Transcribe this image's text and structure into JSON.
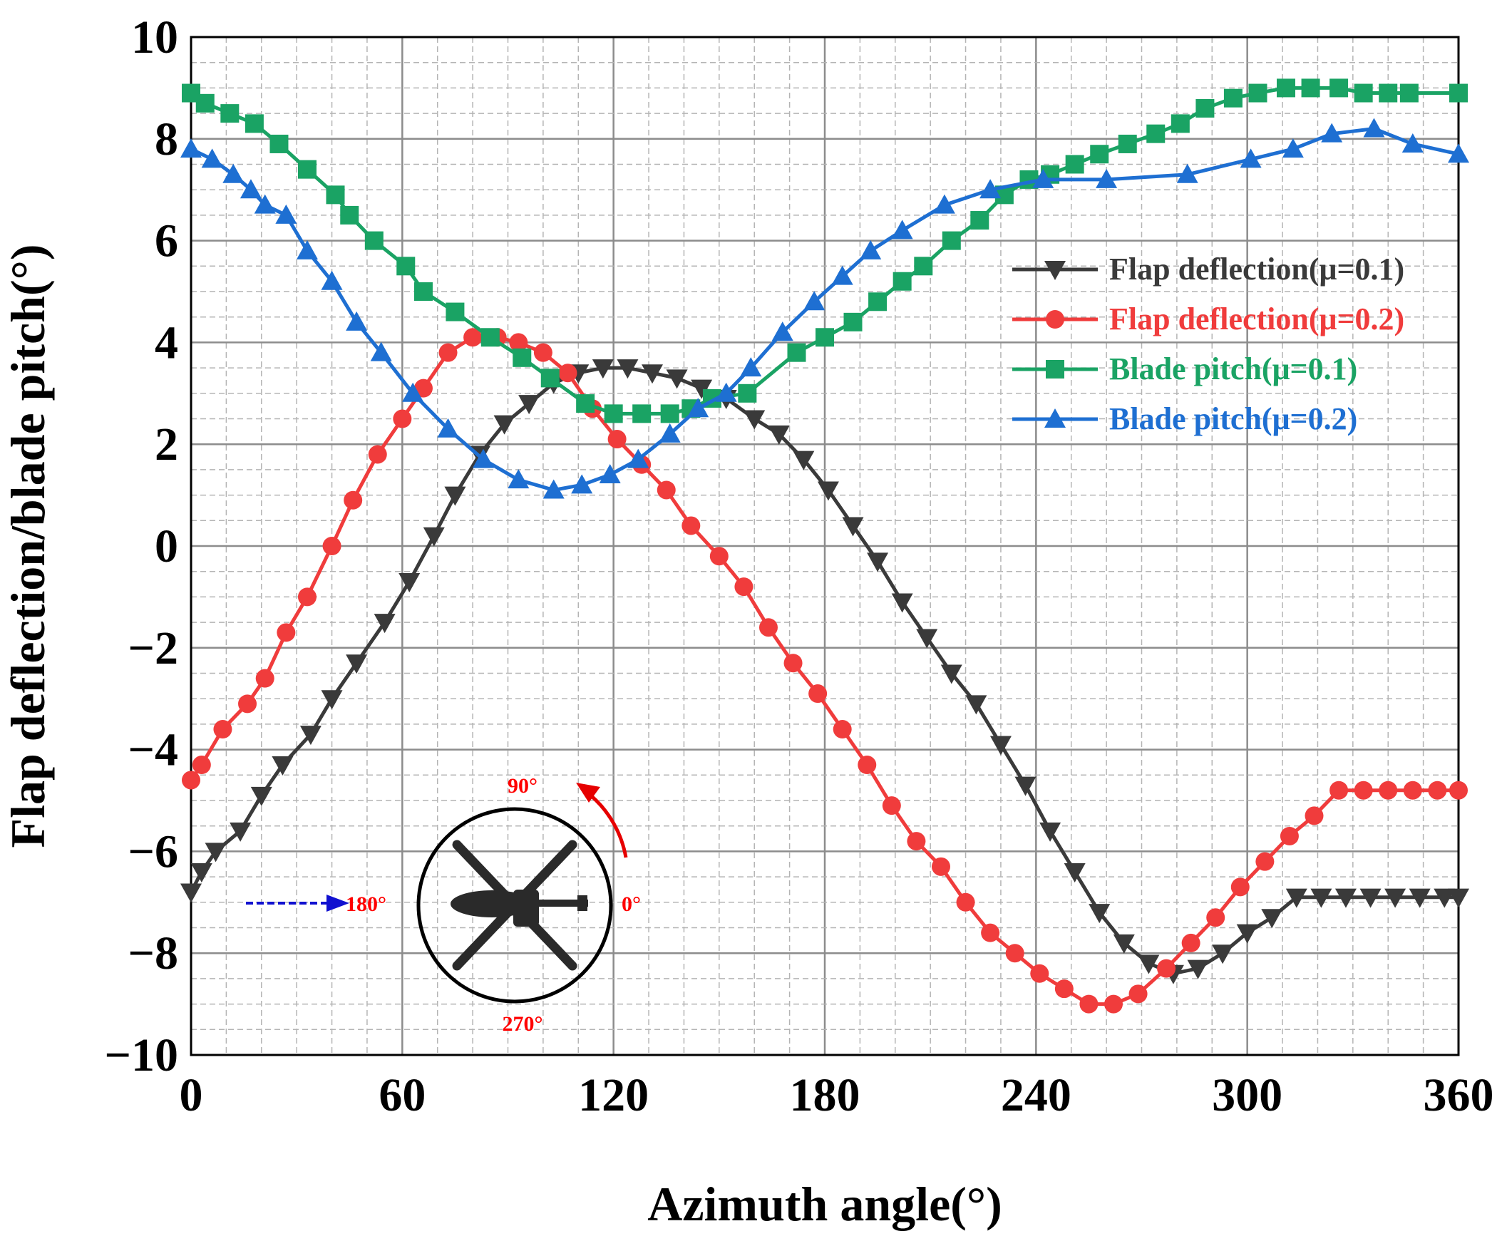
{
  "chart_data": {
    "type": "line",
    "xlabel": "Azimuth angle(°)",
    "ylabel": "Flap deflection/blade pitch(°)",
    "xlim": [
      0,
      360
    ],
    "ylim": [
      -10,
      10
    ],
    "x_ticks": [
      "0",
      "60",
      "120",
      "180",
      "240",
      "300",
      "360"
    ],
    "y_ticks": [
      "10",
      "8",
      "6",
      "4",
      "2",
      "0",
      "−2",
      "−4",
      "−6",
      "−8",
      "−10"
    ],
    "grid": true,
    "legend_position": "right",
    "series": [
      {
        "name": "Flap deflection(μ=0.1)",
        "color": "#3a3a3a",
        "marker": "triangle-down",
        "x": [
          0,
          3,
          7,
          14,
          20,
          26,
          34,
          40,
          47,
          55,
          62,
          69,
          75,
          82,
          89,
          96,
          103,
          110,
          117,
          124,
          131,
          138,
          145,
          152,
          160,
          167,
          174,
          181,
          188,
          195,
          202,
          209,
          216,
          223,
          230,
          237,
          244,
          251,
          258,
          265,
          272,
          279,
          286,
          293,
          300,
          307,
          314,
          321,
          328,
          335,
          342,
          349,
          356,
          360
        ],
        "y": [
          -6.8,
          -6.4,
          -6.0,
          -5.6,
          -4.9,
          -4.3,
          -3.7,
          -3.0,
          -2.3,
          -1.5,
          -0.7,
          0.2,
          1.0,
          1.8,
          2.4,
          2.8,
          3.2,
          3.4,
          3.5,
          3.5,
          3.4,
          3.3,
          3.1,
          2.9,
          2.5,
          2.2,
          1.7,
          1.1,
          0.4,
          -0.3,
          -1.1,
          -1.8,
          -2.5,
          -3.1,
          -3.9,
          -4.7,
          -5.6,
          -6.4,
          -7.2,
          -7.8,
          -8.2,
          -8.4,
          -8.3,
          -8.0,
          -7.6,
          -7.3,
          -6.9,
          -6.9,
          -6.9,
          -6.9,
          -6.9,
          -6.9,
          -6.9,
          -6.9
        ]
      },
      {
        "name": "Flap deflection(μ=0.2)",
        "color": "#f03c3c",
        "marker": "circle",
        "x": [
          0,
          3,
          9,
          16,
          21,
          27,
          33,
          40,
          46,
          53,
          60,
          66,
          73,
          80,
          87,
          93,
          100,
          107,
          114,
          121,
          128,
          135,
          142,
          150,
          157,
          164,
          171,
          178,
          185,
          192,
          199,
          206,
          213,
          220,
          227,
          234,
          241,
          248,
          255,
          262,
          269,
          277,
          284,
          291,
          298,
          305,
          312,
          319,
          326,
          333,
          340,
          347,
          354,
          360
        ],
        "y": [
          -4.6,
          -4.3,
          -3.6,
          -3.1,
          -2.6,
          -1.7,
          -1.0,
          -0.0,
          0.9,
          1.8,
          2.5,
          3.1,
          3.8,
          4.1,
          4.1,
          4.0,
          3.8,
          3.4,
          2.7,
          2.1,
          1.6,
          1.1,
          0.4,
          -0.2,
          -0.8,
          -1.6,
          -2.3,
          -2.9,
          -3.6,
          -4.3,
          -5.1,
          -5.8,
          -6.3,
          -7.0,
          -7.6,
          -8.0,
          -8.4,
          -8.7,
          -9.0,
          -9.0,
          -8.8,
          -8.3,
          -7.8,
          -7.3,
          -6.7,
          -6.2,
          -5.7,
          -5.3,
          -4.8,
          -4.8,
          -4.8,
          -4.8,
          -4.8,
          -4.8
        ]
      },
      {
        "name": "Blade pitch(μ=0.1)",
        "color": "#1aa364",
        "marker": "square",
        "x": [
          0,
          4,
          11,
          18,
          25,
          33,
          41,
          45,
          52,
          61,
          66,
          75,
          85,
          94,
          102,
          112,
          120,
          128,
          136,
          142,
          148,
          158,
          172,
          180,
          188,
          195,
          202,
          208,
          216,
          224,
          231,
          238,
          244,
          251,
          258,
          266,
          274,
          281,
          288,
          296,
          303,
          311,
          318,
          326,
          333,
          340,
          346,
          360
        ],
        "y": [
          8.9,
          8.7,
          8.5,
          8.3,
          7.9,
          7.4,
          6.9,
          6.5,
          6.0,
          5.5,
          5.0,
          4.6,
          4.1,
          3.7,
          3.3,
          2.8,
          2.6,
          2.6,
          2.6,
          2.7,
          2.9,
          3.0,
          3.8,
          4.1,
          4.4,
          4.8,
          5.2,
          5.5,
          6.0,
          6.4,
          6.9,
          7.2,
          7.3,
          7.5,
          7.7,
          7.9,
          8.1,
          8.3,
          8.6,
          8.8,
          8.9,
          9.0,
          9.0,
          9.0,
          8.9,
          8.9,
          8.9,
          8.9
        ]
      },
      {
        "name": "Blade pitch(μ=0.2)",
        "color": "#1e6fd2",
        "marker": "triangle-up",
        "x": [
          0,
          6,
          12,
          17,
          21,
          27,
          33,
          40,
          47,
          54,
          63,
          73,
          83,
          93,
          103,
          111,
          119,
          127,
          136,
          144,
          152,
          159,
          168,
          177,
          185,
          193,
          202,
          214,
          227,
          242,
          260,
          283,
          301,
          313,
          324,
          336,
          347,
          360
        ],
        "y": [
          7.8,
          7.6,
          7.3,
          7.0,
          6.7,
          6.5,
          5.8,
          5.2,
          4.4,
          3.8,
          3.0,
          2.3,
          1.7,
          1.3,
          1.1,
          1.2,
          1.4,
          1.7,
          2.2,
          2.7,
          3.0,
          3.5,
          4.2,
          4.8,
          5.3,
          5.8,
          6.2,
          6.7,
          7.0,
          7.2,
          7.2,
          7.3,
          7.6,
          7.8,
          8.1,
          8.2,
          7.9,
          7.7
        ]
      }
    ],
    "inset": {
      "labels": [
        "90°",
        "180°",
        "0°",
        "270°"
      ],
      "colors": {
        "labels": "#ff0000",
        "rotation_arrow": "#e60000",
        "wind_arrow": "#1010d0",
        "rotor": "#000000",
        "aircraft": "#2a2a2a"
      }
    }
  }
}
